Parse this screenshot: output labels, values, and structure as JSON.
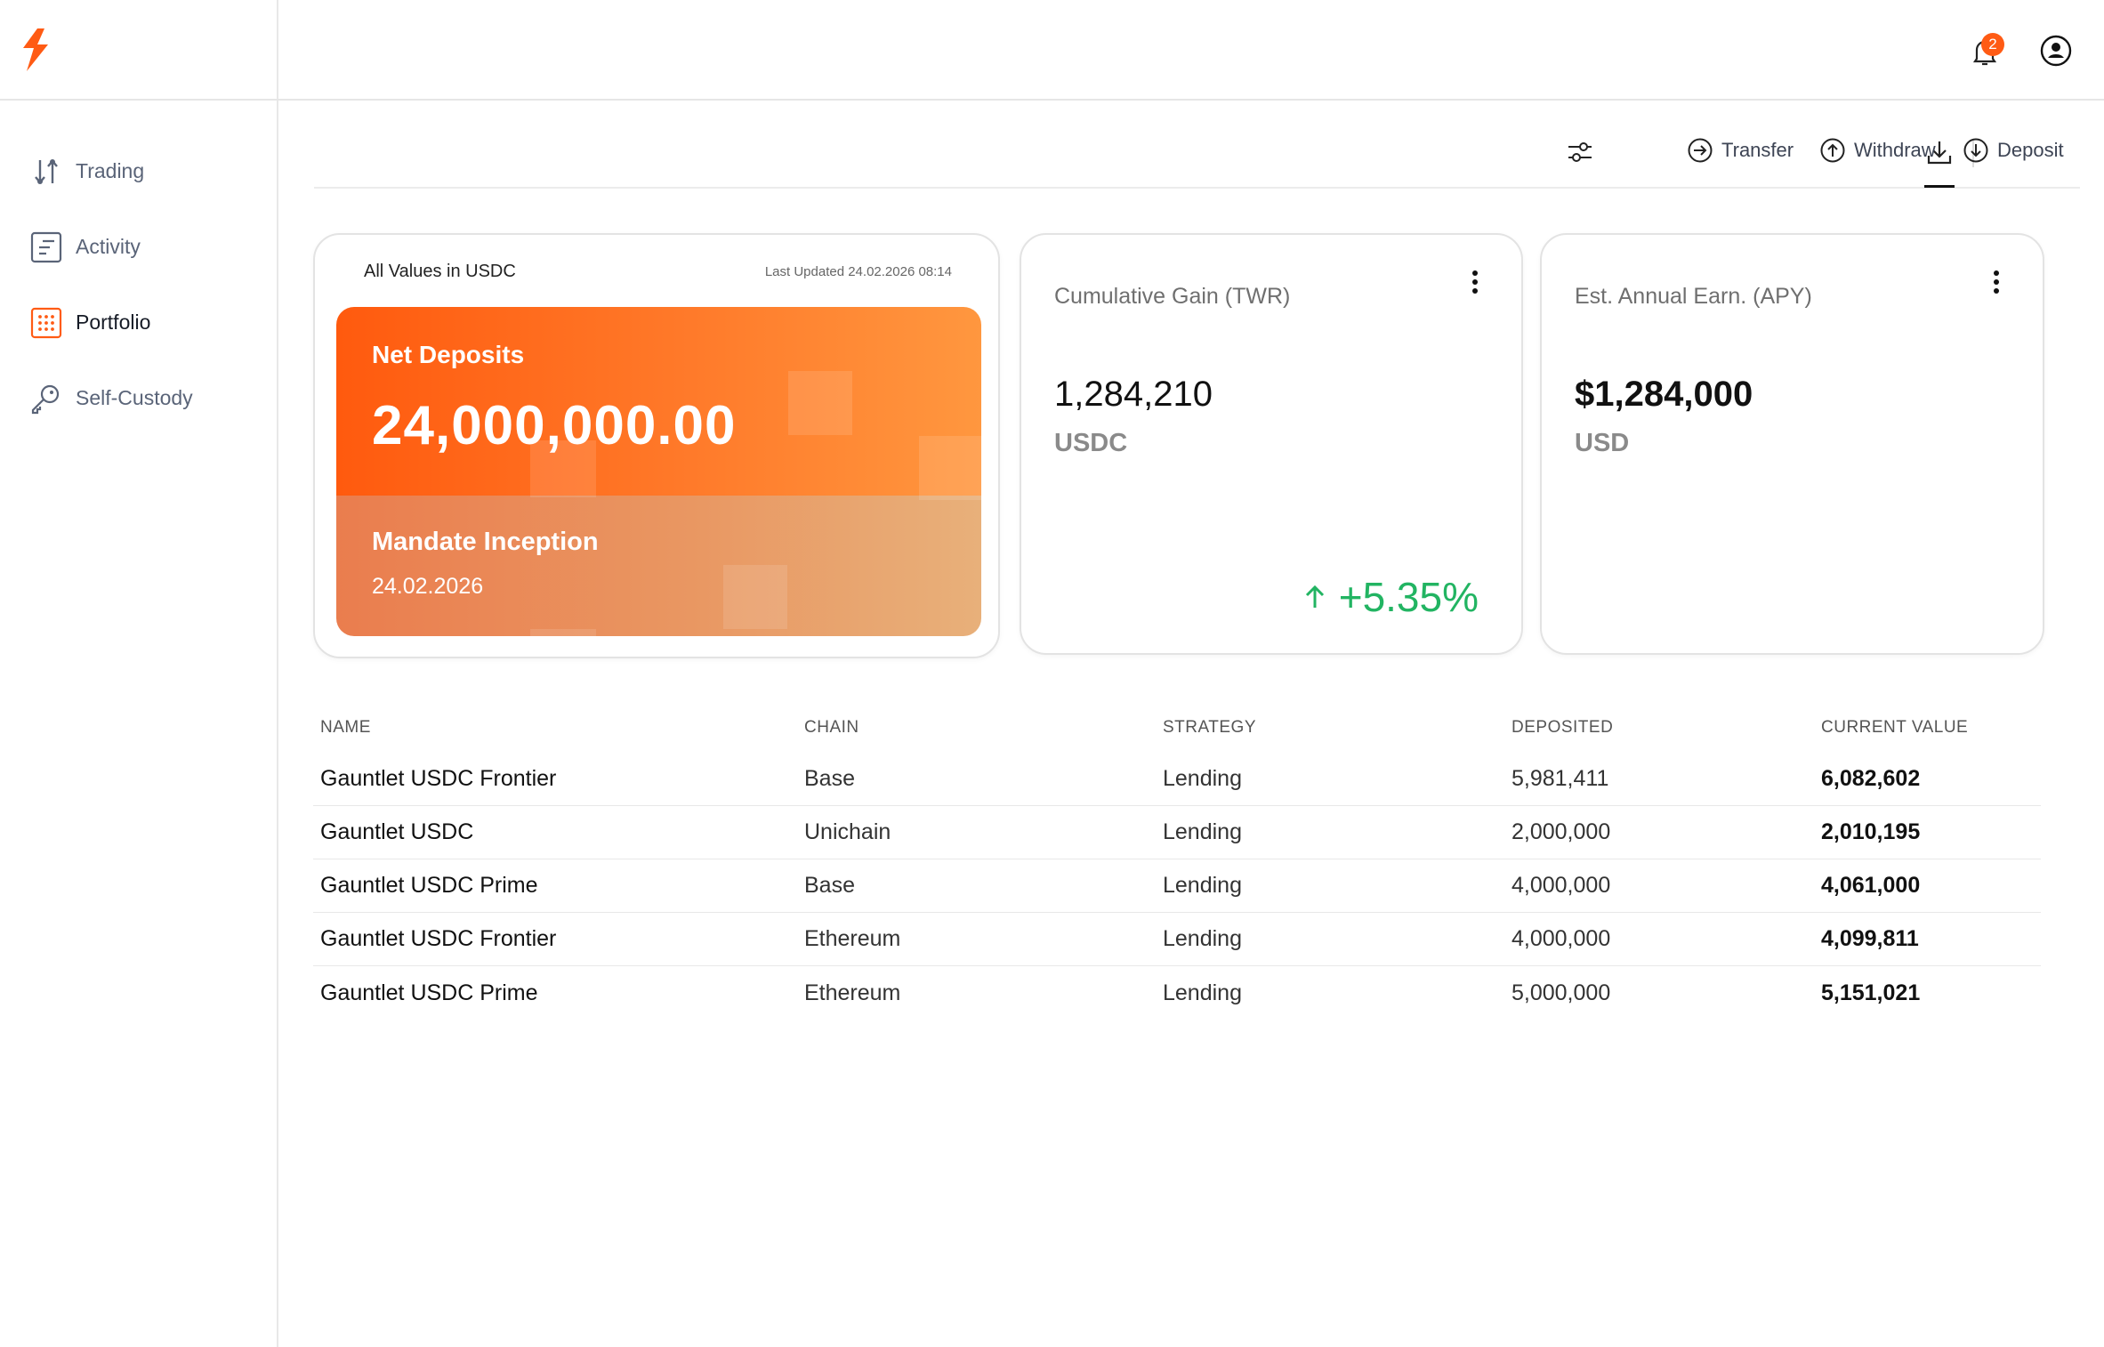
{
  "sidebar": {
    "items": [
      {
        "label": "Trading",
        "icon": "trading-arrows-icon"
      },
      {
        "label": "Activity",
        "icon": "activity-document-icon"
      },
      {
        "label": "Portfolio",
        "icon": "portfolio-grid-icon"
      },
      {
        "label": "Self-Custody",
        "icon": "key-icon"
      }
    ],
    "active": "Portfolio"
  },
  "header": {
    "notification_count": "2"
  },
  "toolbar": {
    "transfer_label": "Transfer",
    "withdraw_label": "Withdraw",
    "deposit_label": "Deposit"
  },
  "summary": {
    "currency_note": "All Values in USDC",
    "last_updated": "Last Updated 24.02.2026   08:14",
    "net_deposits_label": "Net Deposits",
    "net_deposits_value": "24,000,000.00",
    "inception_label": "Mandate Inception",
    "inception_date": "24.02.2026"
  },
  "kpis": {
    "gain": {
      "title": "Cumulative Gain (TWR)",
      "value": "1,284,210",
      "unit": "USDC",
      "change": "+5.35%"
    },
    "apy": {
      "title": "Est. Annual Earn. (APY)",
      "value": "$1,284,000",
      "unit": "USD"
    }
  },
  "table": {
    "headers": [
      "NAME",
      "CHAIN",
      "STRATEGY",
      "DEPOSITED",
      "CURRENT VALUE"
    ],
    "rows": [
      [
        "Gauntlet USDC Frontier",
        "Base",
        "Lending",
        "5,981,411",
        "6,082,602"
      ],
      [
        "Gauntlet USDC",
        "Unichain",
        "Lending",
        "2,000,000",
        "2,010,195"
      ],
      [
        "Gauntlet USDC Prime",
        "Base",
        "Lending",
        "4,000,000",
        "4,061,000"
      ],
      [
        "Gauntlet USDC Frontier",
        "Ethereum",
        "Lending",
        "4,000,000",
        "4,099,811"
      ],
      [
        "Gauntlet USDC Prime",
        "Ethereum",
        "Lending",
        "5,000,000",
        "5,151,021"
      ]
    ]
  },
  "colors": {
    "brand": "#ff5b14",
    "positive": "#22b462"
  }
}
